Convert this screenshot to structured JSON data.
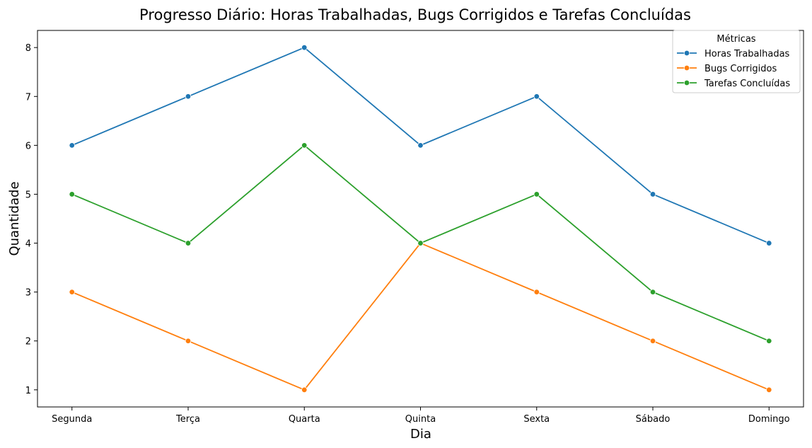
{
  "chart_data": {
    "type": "line",
    "title": "Progresso Diário: Horas Trabalhadas, Bugs Corrigidos e Tarefas Concluídas",
    "xlabel": "Dia",
    "ylabel": "Quantidade",
    "categories": [
      "Segunda",
      "Terça",
      "Quarta",
      "Quinta",
      "Sexta",
      "Sábado",
      "Domingo"
    ],
    "y_ticks": [
      "1",
      "2",
      "3",
      "4",
      "5",
      "6",
      "7",
      "8"
    ],
    "ylim": [
      0.65,
      8.35
    ],
    "grid": false,
    "legend": {
      "title": "Métricas",
      "placement": "top-right"
    },
    "series": [
      {
        "name": "Horas Trabalhadas",
        "color": "#1f77b4",
        "values": [
          6,
          7,
          8,
          6,
          7,
          5,
          4
        ]
      },
      {
        "name": "Bugs Corrigidos",
        "color": "#ff7f0e",
        "values": [
          3,
          2,
          1,
          4,
          3,
          2,
          1
        ]
      },
      {
        "name": "Tarefas Concluídas",
        "color": "#2ca02c",
        "values": [
          5,
          4,
          6,
          4,
          5,
          3,
          2
        ]
      }
    ]
  }
}
